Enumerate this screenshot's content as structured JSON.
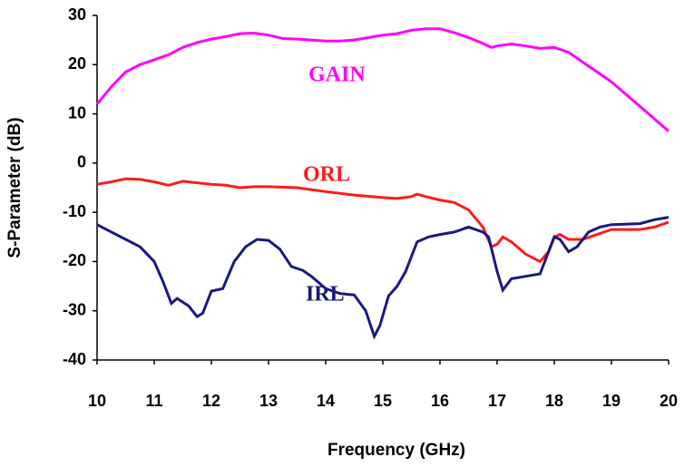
{
  "chart_data": {
    "type": "line",
    "xlabel": "Frequency (GHz)",
    "ylabel": "S-Parameter (dB)",
    "xlim": [
      10,
      20
    ],
    "ylim": [
      -40,
      30
    ],
    "xticks": [
      10,
      11,
      12,
      13,
      14,
      15,
      16,
      17,
      18,
      19,
      20
    ],
    "yticks": [
      -40,
      -30,
      -20,
      -10,
      0,
      10,
      20,
      30
    ],
    "series": [
      {
        "name": "GAIN",
        "color": "#ff00ff",
        "x": [
          10,
          10.25,
          10.5,
          10.75,
          11,
          11.25,
          11.5,
          11.75,
          12,
          12.25,
          12.5,
          12.75,
          13,
          13.25,
          13.5,
          13.75,
          14,
          14.25,
          14.5,
          14.75,
          15,
          15.25,
          15.5,
          15.75,
          16,
          16.25,
          16.5,
          16.75,
          16.9,
          17,
          17.25,
          17.5,
          17.75,
          18,
          18.25,
          18.5,
          18.75,
          19,
          19.25,
          19.5,
          19.75,
          20
        ],
        "values": [
          12,
          15.5,
          18.5,
          20,
          21,
          22,
          23.5,
          24.5,
          25.2,
          25.7,
          26.3,
          26.4,
          26,
          25.3,
          25.2,
          25,
          24.8,
          24.8,
          25,
          25.5,
          26,
          26.3,
          27,
          27.3,
          27.3,
          26.5,
          25.5,
          24.3,
          23.5,
          23.8,
          24.2,
          23.8,
          23.3,
          23.5,
          22.5,
          20.5,
          18.5,
          16.5,
          14,
          11.5,
          9,
          6.5
        ]
      },
      {
        "name": "ORL",
        "color": "#ff1a1a",
        "x": [
          10,
          10.25,
          10.5,
          10.75,
          11,
          11.25,
          11.5,
          11.75,
          12,
          12.25,
          12.5,
          12.75,
          13,
          13.5,
          14,
          14.5,
          15,
          15.25,
          15.5,
          15.6,
          15.75,
          16,
          16.25,
          16.5,
          16.75,
          16.9,
          17,
          17.1,
          17.25,
          17.5,
          17.75,
          17.9,
          18,
          18.1,
          18.25,
          18.5,
          18.75,
          19,
          19.5,
          19.75,
          20
        ],
        "values": [
          -4.3,
          -3.8,
          -3.2,
          -3.3,
          -3.8,
          -4.5,
          -3.7,
          -4,
          -4.3,
          -4.5,
          -5,
          -4.8,
          -4.8,
          -5,
          -5.8,
          -6.5,
          -7,
          -7.2,
          -6.8,
          -6.3,
          -6.8,
          -7.5,
          -8,
          -9.5,
          -13,
          -17,
          -16.5,
          -15,
          -16,
          -18.5,
          -20,
          -18,
          -15,
          -14.5,
          -15.5,
          -15.5,
          -14.5,
          -13.5,
          -13.5,
          -13,
          -12
        ]
      },
      {
        "name": "IRL",
        "color": "#1a1a80",
        "x": [
          10,
          10.25,
          10.5,
          10.75,
          11,
          11.15,
          11.3,
          11.4,
          11.6,
          11.75,
          11.85,
          12,
          12.2,
          12.4,
          12.6,
          12.8,
          13,
          13.2,
          13.4,
          13.6,
          13.75,
          14,
          14.25,
          14.5,
          14.7,
          14.85,
          14.95,
          15.1,
          15.25,
          15.4,
          15.6,
          15.8,
          16,
          16.25,
          16.5,
          16.75,
          16.85,
          17,
          17.1,
          17.25,
          17.5,
          17.75,
          17.9,
          18,
          18.1,
          18.25,
          18.4,
          18.6,
          18.8,
          19,
          19.5,
          19.75,
          20
        ],
        "values": [
          -12.5,
          -14,
          -15.5,
          -17,
          -20,
          -24,
          -28.5,
          -27.5,
          -29,
          -31.2,
          -30.5,
          -26,
          -25.5,
          -20,
          -17,
          -15.5,
          -15.7,
          -17.5,
          -21,
          -21.8,
          -23,
          -25.5,
          -26.5,
          -26.8,
          -30,
          -35.2,
          -33,
          -27,
          -25,
          -22,
          -16,
          -15,
          -14.5,
          -14,
          -13,
          -14,
          -15,
          -22,
          -25.8,
          -23.5,
          -23,
          -22.5,
          -18,
          -15,
          -15.5,
          -18,
          -17,
          -14,
          -13,
          -12.5,
          -12.3,
          -11.5,
          -11
        ]
      }
    ]
  }
}
